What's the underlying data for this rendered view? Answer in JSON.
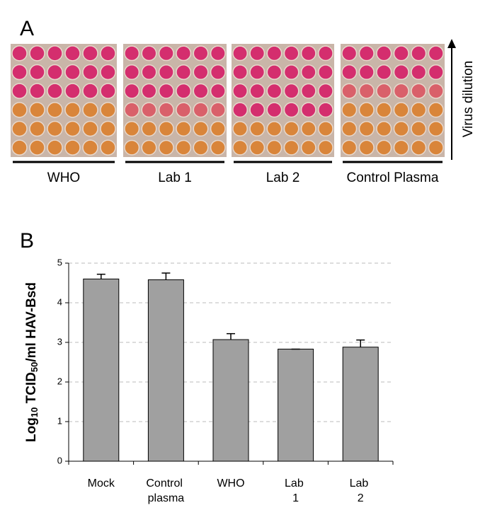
{
  "panel_a": {
    "label": "A",
    "plates": [
      "WHO",
      "Lab 1",
      "Lab 2",
      "Control Plasma"
    ],
    "arrow_label": "Virus dilution"
  },
  "panel_b": {
    "label": "B"
  },
  "chart_data": {
    "type": "bar",
    "y_label_parts": [
      {
        "text": "Log",
        "sub": false
      },
      {
        "text": "10",
        "sub": true
      },
      {
        "text": " TCID",
        "sub": false
      },
      {
        "text": "50",
        "sub": true
      },
      {
        "text": "/ml HAV-Bsd",
        "sub": false
      }
    ],
    "categories": [
      "Mock",
      "Control plasma",
      "WHO",
      "Lab 1",
      "Lab 2"
    ],
    "values": [
      4.6,
      4.58,
      3.07,
      2.83,
      2.88
    ],
    "errors": [
      0.12,
      0.17,
      0.15,
      0,
      0.18
    ],
    "color": "#a0a0a0",
    "ylim": [
      0,
      5
    ],
    "yticks": [
      0,
      1,
      2,
      3,
      4,
      5
    ],
    "grid": true
  }
}
